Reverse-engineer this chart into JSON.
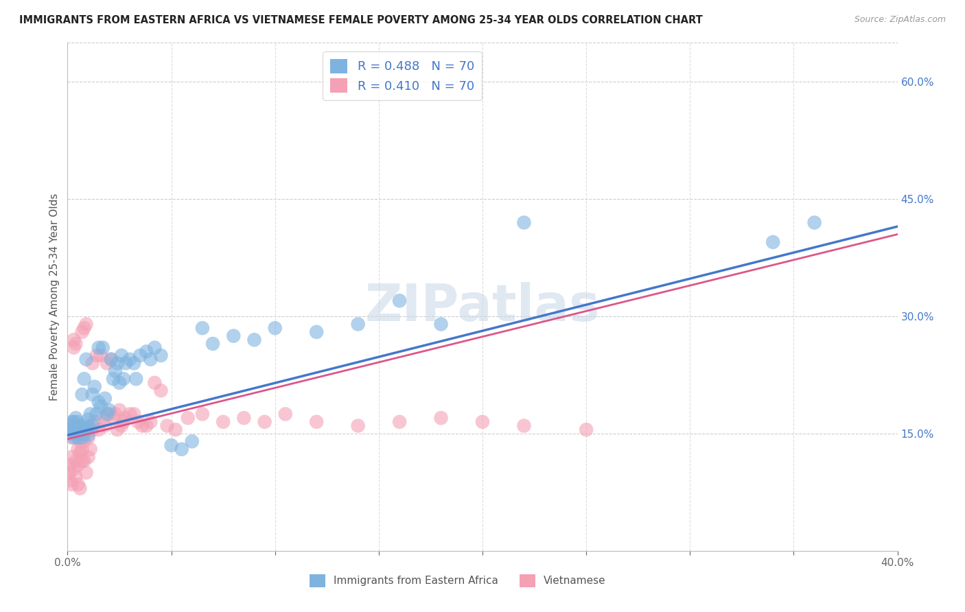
{
  "title": "IMMIGRANTS FROM EASTERN AFRICA VS VIETNAMESE FEMALE POVERTY AMONG 25-34 YEAR OLDS CORRELATION CHART",
  "source": "Source: ZipAtlas.com",
  "ylabel": "Female Poverty Among 25-34 Year Olds",
  "xlim": [
    0.0,
    0.4
  ],
  "ylim": [
    0.0,
    0.65
  ],
  "y_ticks_right": [
    0.15,
    0.3,
    0.45,
    0.6
  ],
  "y_tick_labels_right": [
    "15.0%",
    "30.0%",
    "45.0%",
    "60.0%"
  ],
  "blue_color": "#7EB3E0",
  "pink_color": "#F4A0B5",
  "blue_line_color": "#4477CC",
  "pink_line_color": "#DD5588",
  "R_blue": 0.488,
  "N_blue": 70,
  "R_pink": 0.41,
  "N_pink": 70,
  "legend_label_blue": "Immigrants from Eastern Africa",
  "legend_label_pink": "Vietnamese",
  "watermark": "ZIPatlas",
  "blue_line_x0": 0.0,
  "blue_line_y0": 0.148,
  "blue_line_x1": 0.4,
  "blue_line_y1": 0.415,
  "pink_line_x0": 0.0,
  "pink_line_y0": 0.143,
  "pink_line_x1": 0.4,
  "pink_line_y1": 0.405,
  "blue_scatter_x": [
    0.001,
    0.001,
    0.002,
    0.002,
    0.002,
    0.003,
    0.003,
    0.003,
    0.004,
    0.004,
    0.004,
    0.005,
    0.005,
    0.005,
    0.006,
    0.006,
    0.007,
    0.007,
    0.007,
    0.008,
    0.008,
    0.008,
    0.009,
    0.009,
    0.01,
    0.01,
    0.01,
    0.011,
    0.012,
    0.012,
    0.013,
    0.014,
    0.015,
    0.015,
    0.016,
    0.017,
    0.018,
    0.019,
    0.02,
    0.021,
    0.022,
    0.023,
    0.024,
    0.025,
    0.026,
    0.027,
    0.028,
    0.03,
    0.032,
    0.033,
    0.035,
    0.038,
    0.04,
    0.042,
    0.045,
    0.05,
    0.055,
    0.06,
    0.065,
    0.07,
    0.08,
    0.09,
    0.1,
    0.12,
    0.14,
    0.16,
    0.18,
    0.22,
    0.34,
    0.36
  ],
  "blue_scatter_y": [
    0.155,
    0.16,
    0.15,
    0.155,
    0.165,
    0.145,
    0.155,
    0.165,
    0.15,
    0.16,
    0.17,
    0.145,
    0.155,
    0.165,
    0.15,
    0.16,
    0.145,
    0.158,
    0.2,
    0.15,
    0.16,
    0.22,
    0.155,
    0.245,
    0.148,
    0.158,
    0.168,
    0.175,
    0.16,
    0.2,
    0.21,
    0.175,
    0.19,
    0.26,
    0.185,
    0.26,
    0.195,
    0.175,
    0.18,
    0.245,
    0.22,
    0.23,
    0.24,
    0.215,
    0.25,
    0.22,
    0.24,
    0.245,
    0.24,
    0.22,
    0.25,
    0.255,
    0.245,
    0.26,
    0.25,
    0.135,
    0.13,
    0.14,
    0.285,
    0.265,
    0.275,
    0.27,
    0.285,
    0.28,
    0.29,
    0.32,
    0.29,
    0.42,
    0.395,
    0.42
  ],
  "pink_scatter_x": [
    0.001,
    0.001,
    0.001,
    0.002,
    0.002,
    0.002,
    0.003,
    0.003,
    0.003,
    0.004,
    0.004,
    0.004,
    0.005,
    0.005,
    0.005,
    0.006,
    0.006,
    0.006,
    0.007,
    0.007,
    0.007,
    0.008,
    0.008,
    0.008,
    0.009,
    0.009,
    0.01,
    0.01,
    0.011,
    0.012,
    0.012,
    0.013,
    0.014,
    0.015,
    0.016,
    0.017,
    0.018,
    0.019,
    0.02,
    0.021,
    0.022,
    0.023,
    0.024,
    0.025,
    0.026,
    0.027,
    0.028,
    0.03,
    0.032,
    0.034,
    0.036,
    0.038,
    0.04,
    0.042,
    0.045,
    0.048,
    0.052,
    0.058,
    0.065,
    0.075,
    0.085,
    0.095,
    0.105,
    0.12,
    0.14,
    0.16,
    0.18,
    0.2,
    0.22,
    0.25
  ],
  "pink_scatter_y": [
    0.1,
    0.11,
    0.09,
    0.145,
    0.12,
    0.085,
    0.27,
    0.26,
    0.105,
    0.115,
    0.095,
    0.265,
    0.13,
    0.11,
    0.085,
    0.125,
    0.14,
    0.08,
    0.13,
    0.115,
    0.28,
    0.14,
    0.115,
    0.285,
    0.1,
    0.29,
    0.145,
    0.12,
    0.13,
    0.155,
    0.24,
    0.165,
    0.25,
    0.155,
    0.25,
    0.17,
    0.16,
    0.24,
    0.175,
    0.245,
    0.17,
    0.175,
    0.155,
    0.18,
    0.16,
    0.165,
    0.17,
    0.175,
    0.175,
    0.165,
    0.16,
    0.16,
    0.165,
    0.215,
    0.205,
    0.16,
    0.155,
    0.17,
    0.175,
    0.165,
    0.17,
    0.165,
    0.175,
    0.165,
    0.16,
    0.165,
    0.17,
    0.165,
    0.16,
    0.155
  ]
}
